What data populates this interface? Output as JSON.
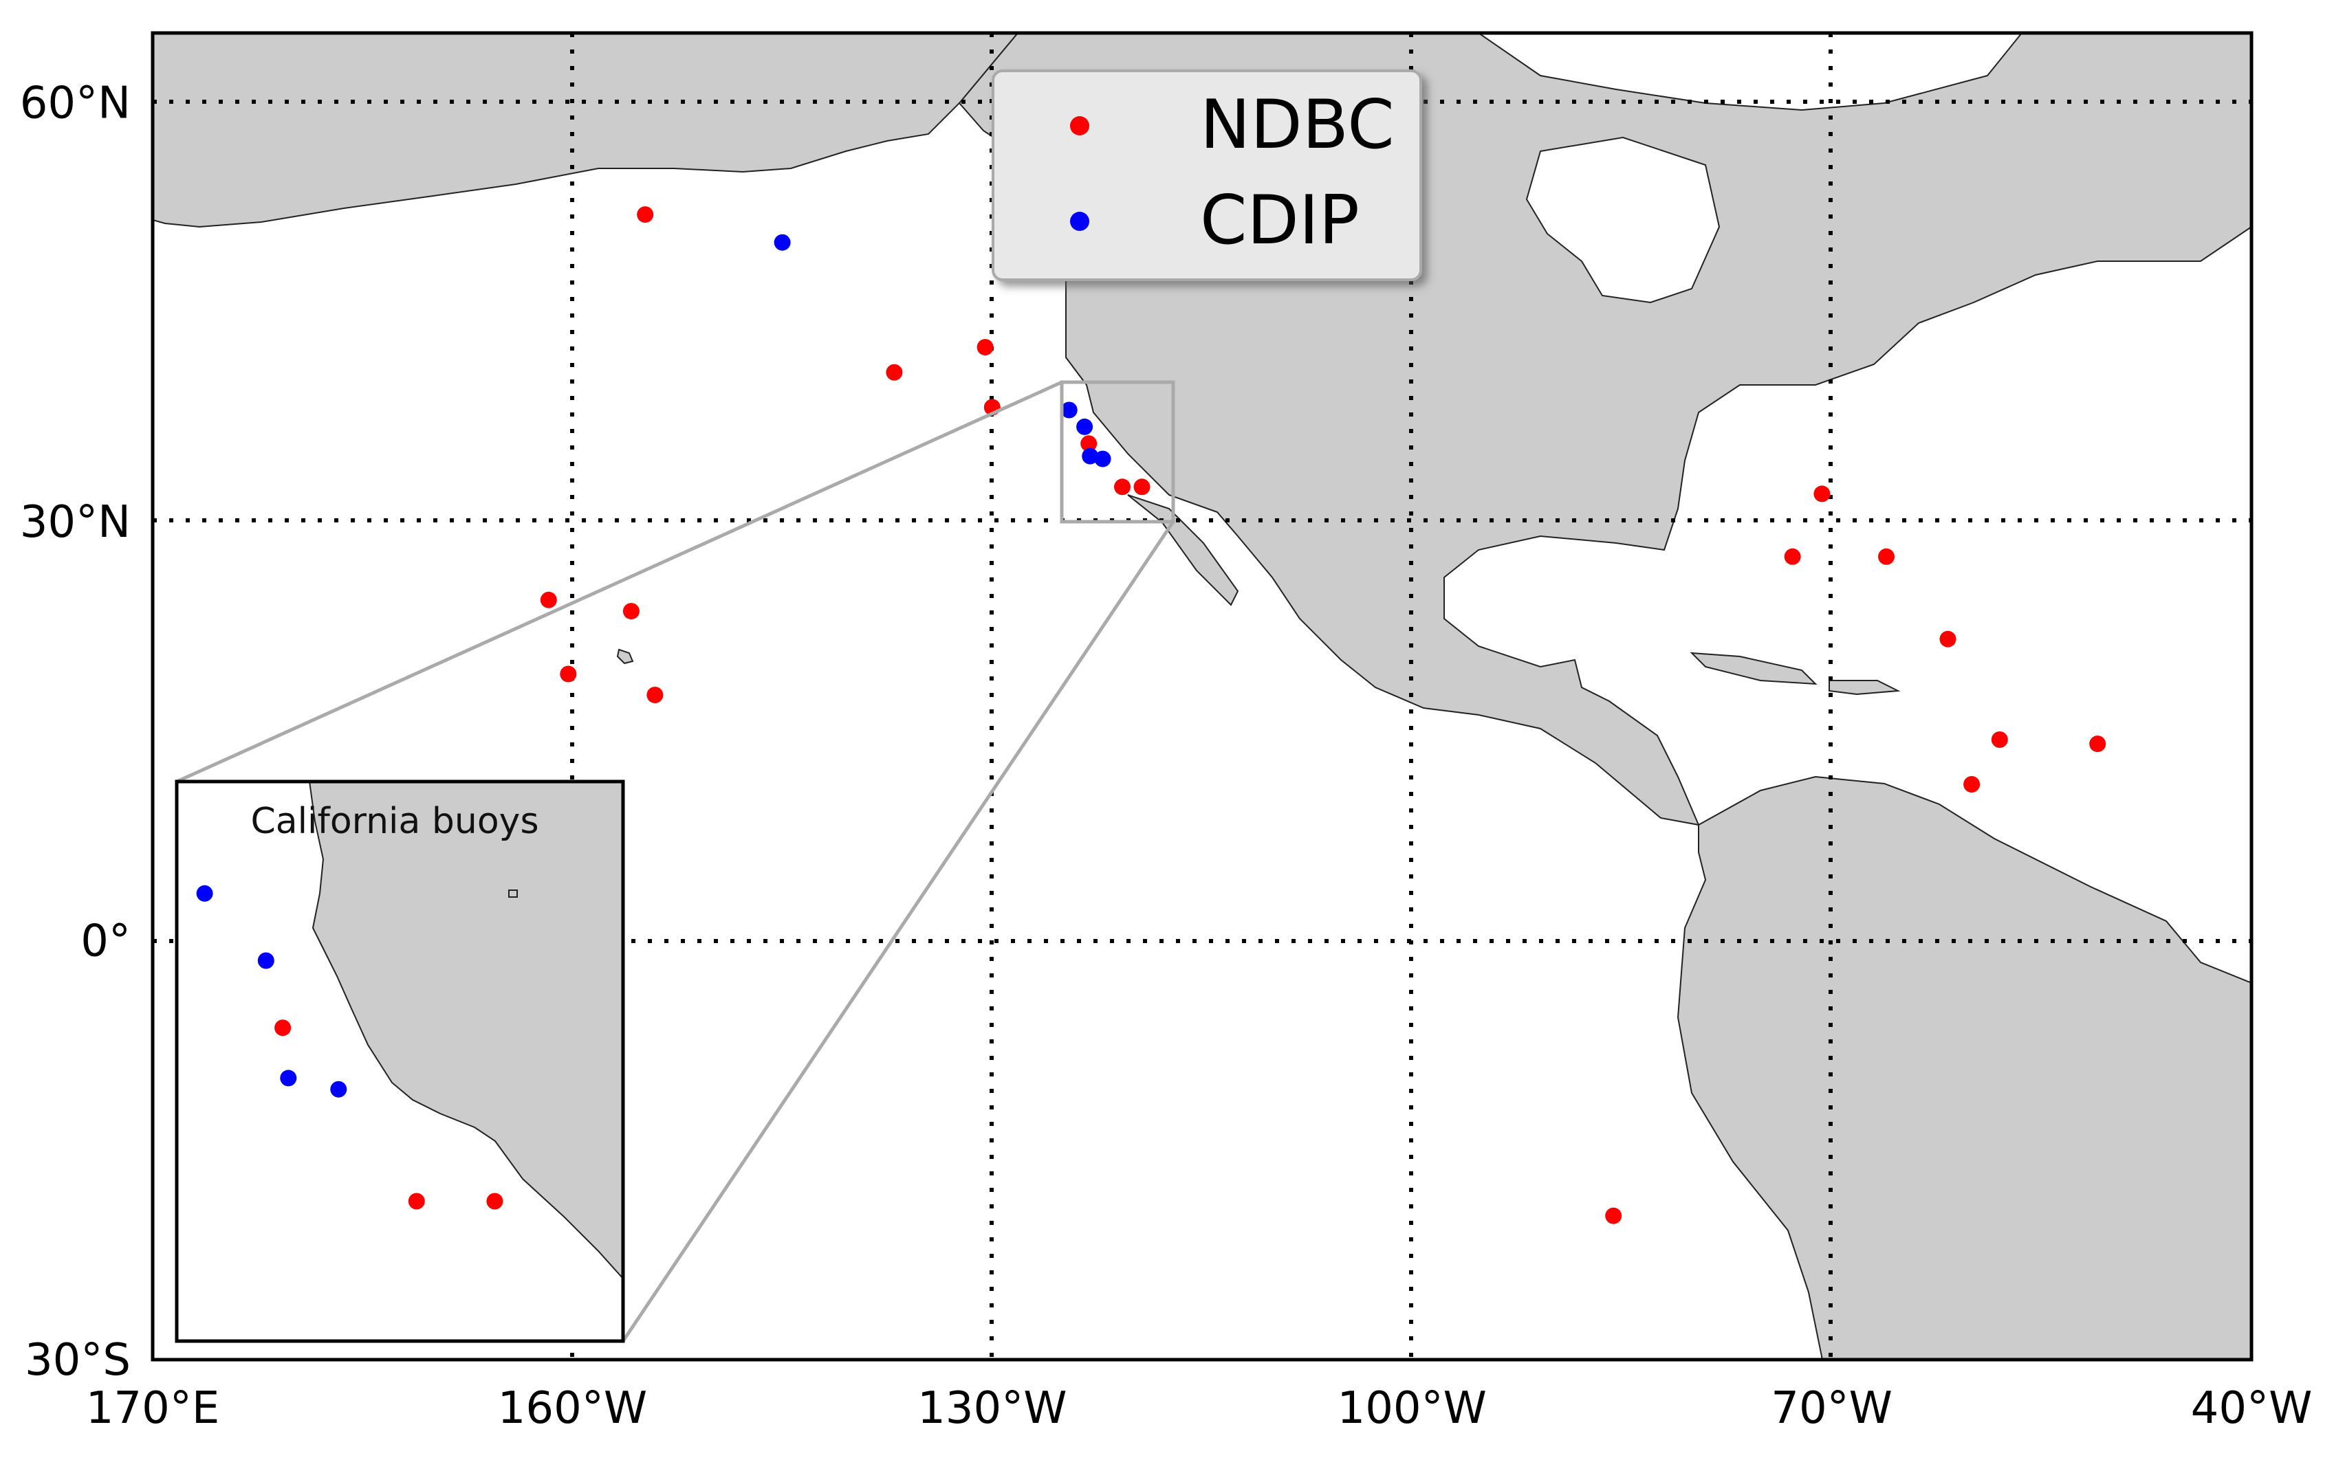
{
  "chart_data": {
    "type": "scatter",
    "projection": "equirectangular",
    "xlim_lon_east": [
      170,
      320
    ],
    "ylim_lat": [
      -30,
      65
    ],
    "x_ticks": [
      {
        "value": 170,
        "label": "170°E"
      },
      {
        "value": 200,
        "label": "160°W"
      },
      {
        "value": 230,
        "label": "130°W"
      },
      {
        "value": 260,
        "label": "100°W"
      },
      {
        "value": 290,
        "label": "70°W"
      },
      {
        "value": 320,
        "label": "40°W"
      }
    ],
    "y_ticks": [
      {
        "value": 60,
        "label": "60°N"
      },
      {
        "value": 30,
        "label": "30°N"
      },
      {
        "value": 0,
        "label": "0°"
      },
      {
        "value": -30,
        "label": "30°S"
      }
    ],
    "grid": "dotted",
    "land_color": "#cccccc",
    "ocean_color": "#ffffff",
    "legend_position": "top-center",
    "series": [
      {
        "name": "NDBC",
        "color": "#ff0000",
        "points": [
          {
            "lon": 205.2,
            "lat": 52.0
          },
          {
            "lon": 223.0,
            "lat": 40.7
          },
          {
            "lon": 229.5,
            "lat": 42.5
          },
          {
            "lon": 230.0,
            "lat": 38.2
          },
          {
            "lon": 198.3,
            "lat": 24.4
          },
          {
            "lon": 204.2,
            "lat": 23.6
          },
          {
            "lon": 199.7,
            "lat": 19.1
          },
          {
            "lon": 205.9,
            "lat": 17.6
          },
          {
            "lon": 236.9,
            "lat": 35.6
          },
          {
            "lon": 239.3,
            "lat": 32.5
          },
          {
            "lon": 240.7,
            "lat": 32.5
          },
          {
            "lon": 289.3,
            "lat": 32.0
          },
          {
            "lon": 287.2,
            "lat": 27.5
          },
          {
            "lon": 293.9,
            "lat": 27.5
          },
          {
            "lon": 298.3,
            "lat": 21.6
          },
          {
            "lon": 300.0,
            "lat": 11.2
          },
          {
            "lon": 302.0,
            "lat": 14.4
          },
          {
            "lon": 309.0,
            "lat": 14.1
          },
          {
            "lon": 274.4,
            "lat": -19.7
          }
        ]
      },
      {
        "name": "CDIP",
        "color": "#0000ff",
        "points": [
          {
            "lon": 215.0,
            "lat": 50.0
          },
          {
            "lon": 235.5,
            "lat": 38.0
          },
          {
            "lon": 236.6,
            "lat": 36.8
          },
          {
            "lon": 237.0,
            "lat": 34.7
          },
          {
            "lon": 237.9,
            "lat": 34.5
          }
        ]
      }
    ],
    "inset": {
      "title": "California buoys",
      "source_box": {
        "lon": [
          235,
          243
        ],
        "lat": [
          30,
          40
        ]
      }
    }
  }
}
